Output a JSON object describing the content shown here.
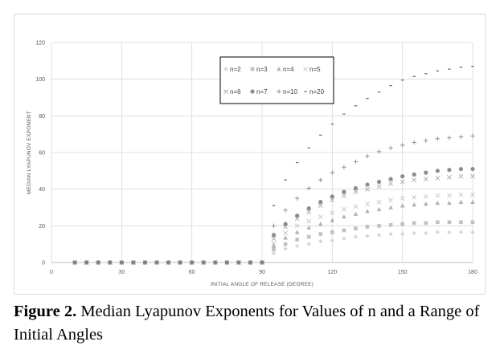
{
  "caption": {
    "label": "Figure 2.",
    "text": " Median Lyapunov Exponents for Values of n and a Range of Initial Angles"
  },
  "chart_data": {
    "type": "scatter",
    "xlabel": "INITIAL ANGLE OF RELEASE (DEGREE)",
    "ylabel": "MEDIAN LYAPUNOV EXPONENT",
    "xlim": [
      0,
      180
    ],
    "ylim": [
      0,
      120
    ],
    "xticks": [
      0,
      30,
      60,
      90,
      120,
      150,
      180
    ],
    "yticks": [
      0,
      20,
      40,
      60,
      80,
      100,
      120
    ],
    "grid": true,
    "legend_position": "inside top-center",
    "x": [
      10,
      15,
      20,
      25,
      30,
      35,
      40,
      45,
      50,
      55,
      60,
      65,
      70,
      75,
      80,
      85,
      90,
      95,
      100,
      105,
      110,
      115,
      120,
      125,
      130,
      135,
      140,
      145,
      150,
      155,
      160,
      165,
      170,
      175,
      180
    ],
    "series": [
      {
        "name": "n=2",
        "marker": "diamond",
        "color": "#d4d4d4",
        "values": [
          0,
          0,
          0,
          0,
          0,
          0,
          0,
          0,
          0,
          0,
          0,
          0,
          0,
          0,
          0,
          0,
          0,
          5,
          7.5,
          9,
          10,
          11.5,
          12,
          13,
          14,
          14.5,
          15,
          15.5,
          15.5,
          16,
          16,
          16.5,
          16.5,
          16.5,
          16.5
        ]
      },
      {
        "name": "n=3",
        "marker": "square",
        "color": "#c0c0c0",
        "values": [
          0,
          0,
          0,
          0,
          0,
          0,
          0,
          0,
          0,
          0,
          0,
          0,
          0,
          0,
          0,
          0,
          0,
          7,
          10,
          12.5,
          14,
          15.5,
          16.5,
          17.5,
          18.5,
          19.5,
          20,
          20.5,
          21,
          21.5,
          21.5,
          22,
          22,
          22,
          22
        ]
      },
      {
        "name": "n=4",
        "marker": "triangle",
        "color": "#b0b0b0",
        "values": [
          0,
          0,
          0,
          0,
          0,
          0,
          0,
          0,
          0,
          0,
          0,
          0,
          0,
          0,
          0,
          0,
          0,
          9,
          13.5,
          16.5,
          19,
          21,
          23,
          25,
          26.5,
          28,
          29,
          30,
          31,
          31.5,
          32,
          32.5,
          32.5,
          33,
          33
        ]
      },
      {
        "name": "n=5",
        "marker": "x",
        "color": "#c4c4c4",
        "values": [
          0,
          0,
          0,
          0,
          0,
          0,
          0,
          0,
          0,
          0,
          0,
          0,
          0,
          0,
          0,
          0,
          0,
          10.5,
          16,
          20,
          22.5,
          25,
          27,
          29,
          30.5,
          32,
          33,
          34,
          35,
          35.5,
          36,
          36.5,
          36.5,
          37,
          37
        ]
      },
      {
        "name": "n=6",
        "marker": "x",
        "color": "#a8a8a8",
        "values": [
          0,
          0,
          0,
          0,
          0,
          0,
          0,
          0,
          0,
          0,
          0,
          0,
          0,
          0,
          0,
          0,
          0,
          13,
          19.5,
          24,
          27.5,
          31,
          34,
          36.5,
          38.5,
          40,
          41.5,
          43,
          44,
          45,
          45.5,
          46,
          46.5,
          47,
          47
        ]
      },
      {
        "name": "n=7",
        "marker": "circle",
        "color": "#8c8c8c",
        "values": [
          0,
          0,
          0,
          0,
          0,
          0,
          0,
          0,
          0,
          0,
          0,
          0,
          0,
          0,
          0,
          0,
          0,
          15,
          21,
          25.5,
          29.5,
          33,
          36,
          38.5,
          40.5,
          42.5,
          44,
          45.5,
          47,
          48,
          49,
          50,
          50.5,
          51,
          51
        ]
      },
      {
        "name": "n=10",
        "marker": "plus",
        "color": "#8a8a8a",
        "values": [
          0,
          0,
          0,
          0,
          0,
          0,
          0,
          0,
          0,
          0,
          0,
          0,
          0,
          0,
          0,
          0,
          0,
          20,
          28.5,
          35,
          40.5,
          45,
          49,
          52,
          55,
          58,
          60.5,
          62.5,
          64,
          65.5,
          66.5,
          67.5,
          68,
          68.5,
          69
        ]
      },
      {
        "name": "n=20",
        "marker": "dash",
        "color": "#6e6e6e",
        "values": [
          0,
          0,
          0,
          0,
          0,
          0,
          0,
          0,
          0,
          0,
          0,
          0,
          0,
          0,
          0,
          0,
          0,
          31,
          45,
          54.5,
          62.5,
          69.5,
          75.5,
          81,
          85.5,
          89.5,
          93,
          96.5,
          99.5,
          101.5,
          103,
          104.5,
          105.5,
          106.5,
          107
        ]
      }
    ]
  }
}
